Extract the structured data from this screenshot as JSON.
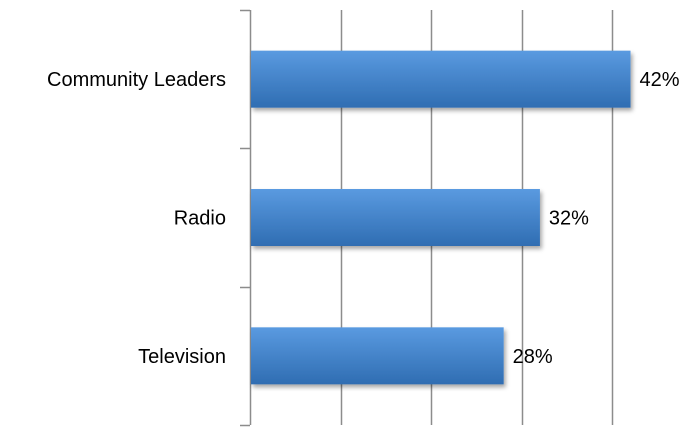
{
  "chart_data": {
    "type": "bar",
    "orientation": "horizontal",
    "categories": [
      "Community Leaders",
      "Radio",
      "Television"
    ],
    "values": [
      42,
      32,
      28
    ],
    "data_labels": [
      "42%",
      "32%",
      "28%"
    ],
    "title": "",
    "xlabel": "",
    "ylabel": "",
    "xlim": [
      0,
      50
    ],
    "grid": "vertical gridlines at every 10%",
    "legend": "none",
    "bar_color": "#3f7fc8",
    "bar_gradient_top": "#5a9ae0",
    "bar_gradient_bottom": "#2f6db2",
    "gridline_color": "#8c8c8c"
  }
}
